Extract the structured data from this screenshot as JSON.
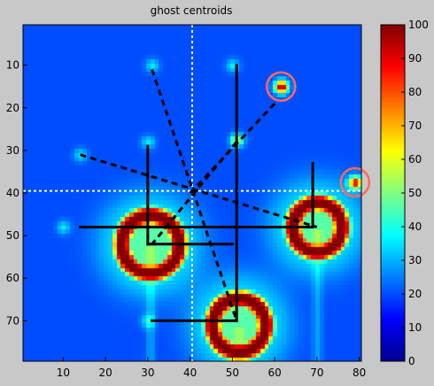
{
  "chart_data": {
    "type": "heatmap",
    "title": "ghost centroids",
    "xlabel": "",
    "ylabel": "",
    "xlim": [
      0.5,
      80.5
    ],
    "ylim": [
      0.5,
      79.5
    ],
    "x_ticks": [
      10,
      20,
      30,
      40,
      50,
      60,
      70,
      80
    ],
    "y_ticks": [
      10,
      20,
      30,
      40,
      50,
      60,
      70
    ],
    "colorbar": {
      "range": [
        0,
        100
      ],
      "ticks": [
        0,
        10,
        20,
        30,
        40,
        50,
        60,
        70,
        80,
        90,
        100
      ],
      "colormap": "jet"
    },
    "background_level": 20,
    "blobs": [
      {
        "x": 30.5,
        "y": 52,
        "radius": 7.5,
        "ring_value": 100,
        "center_value": 12
      },
      {
        "x": 70,
        "y": 48,
        "radius": 6.5,
        "ring_value": 100,
        "center_value": 12
      },
      {
        "x": 51.5,
        "y": 71,
        "radius": 7,
        "ring_value": 100,
        "center_value": 12
      }
    ],
    "hot_spots": [
      {
        "x": 61.5,
        "y": 15,
        "value": 100
      },
      {
        "x": 79,
        "y": 37.5,
        "value": 90
      },
      {
        "x": 51,
        "y": 27.5,
        "value": 60
      }
    ],
    "faint_spots": [
      {
        "x": 31,
        "y": 10
      },
      {
        "x": 50,
        "y": 10
      },
      {
        "x": 30,
        "y": 28
      },
      {
        "x": 14,
        "y": 31
      },
      {
        "x": 10,
        "y": 48
      },
      {
        "x": 30,
        "y": 70
      }
    ],
    "crosshair": {
      "x": 40.5,
      "y": 39.5,
      "color": "#ffffff"
    },
    "highlight_circles": [
      {
        "x": 61.5,
        "y": 15,
        "color": "#ff6a5a"
      },
      {
        "x": 79,
        "y": 37.5,
        "color": "#ff6a5a"
      }
    ],
    "solid_segments": [
      [
        [
          51,
          10
        ],
        [
          51,
          70
        ]
      ],
      [
        [
          30,
          29
        ],
        [
          30,
          52
        ]
      ],
      [
        [
          30,
          52
        ],
        [
          50,
          52
        ]
      ],
      [
        [
          69,
          33
        ],
        [
          69,
          48
        ]
      ],
      [
        [
          14,
          48
        ],
        [
          69,
          48
        ]
      ],
      [
        [
          31,
          70
        ],
        [
          51,
          70
        ]
      ]
    ],
    "dashed_segments": [
      [
        [
          31,
          11
        ],
        [
          51,
          70
        ]
      ],
      [
        [
          14,
          31
        ],
        [
          70,
          48
        ]
      ],
      [
        [
          51,
          28
        ],
        [
          31,
          52
        ]
      ],
      [
        [
          60,
          19
        ],
        [
          40,
          40
        ]
      ]
    ]
  }
}
